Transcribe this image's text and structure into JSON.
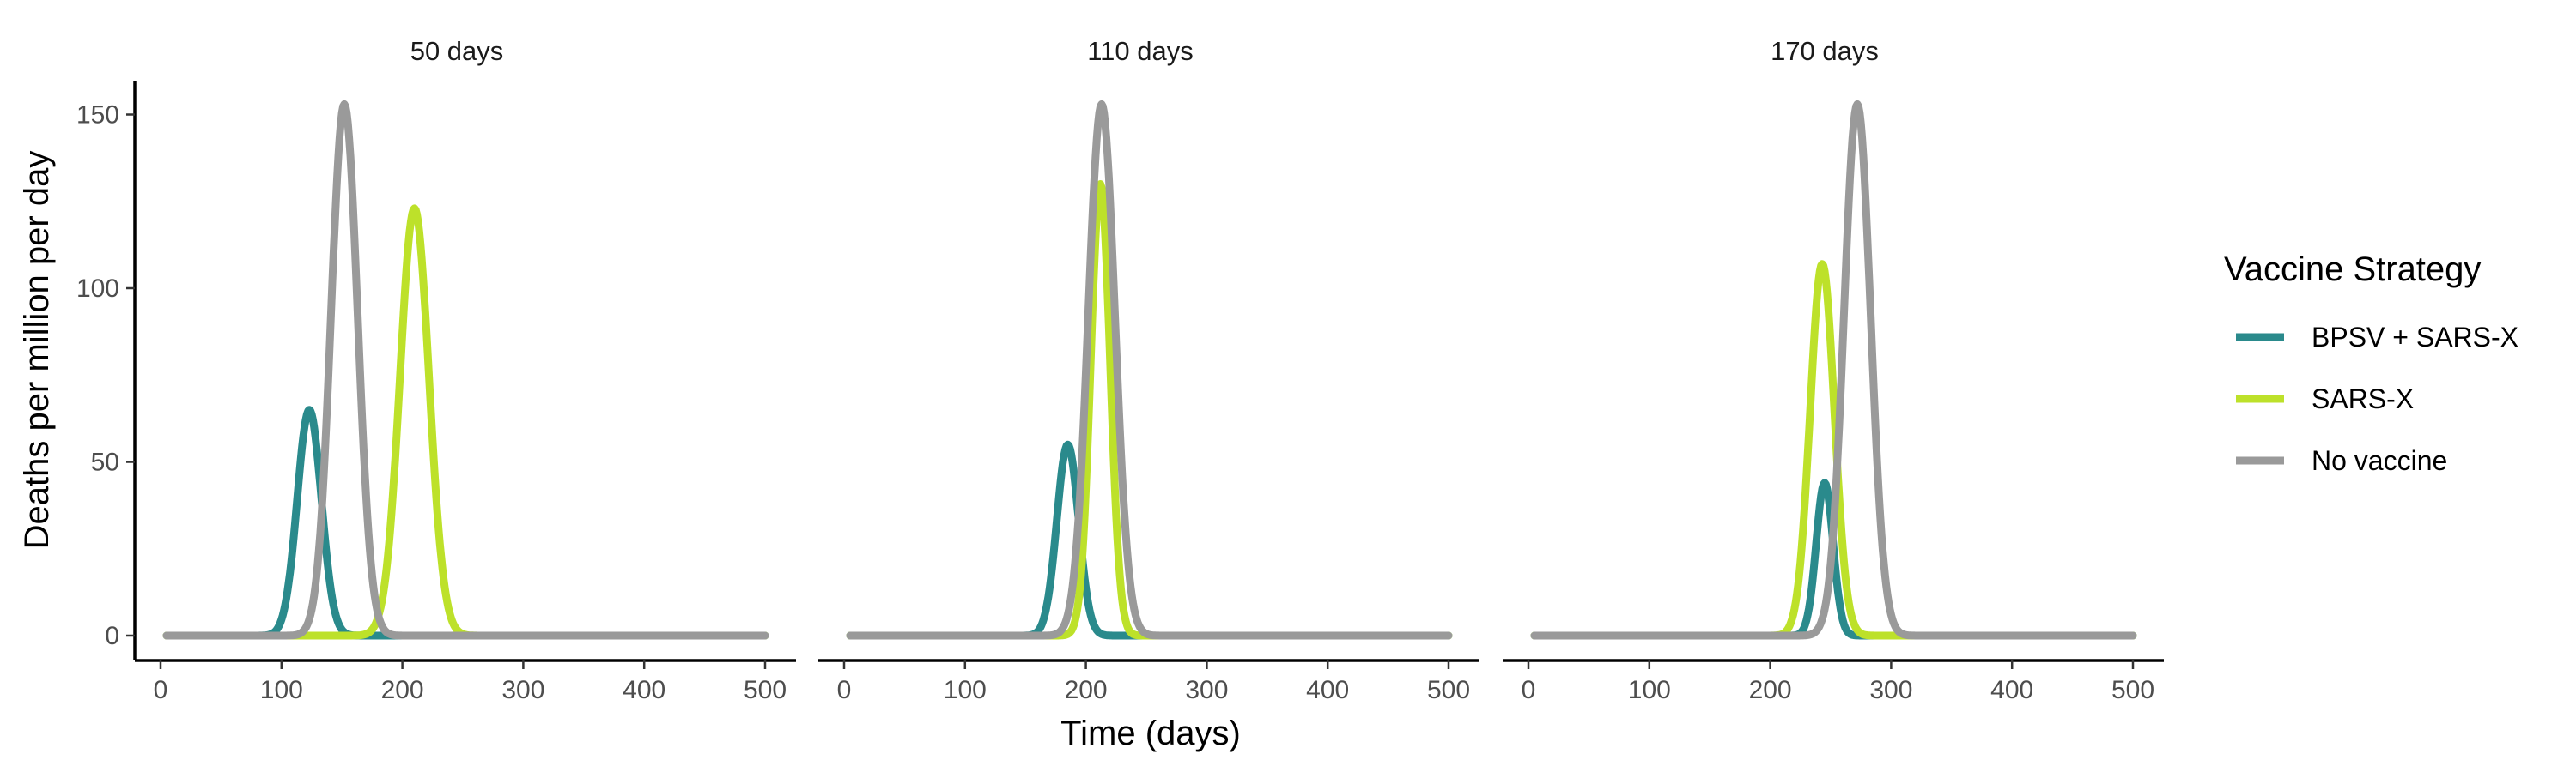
{
  "chart_data": {
    "type": "line",
    "xlabel": "Time (days)",
    "ylabel": "Deaths per million per day",
    "xlim": [
      0,
      500
    ],
    "ylim": [
      0,
      160
    ],
    "x_ticks": [
      0,
      100,
      200,
      300,
      400,
      500
    ],
    "y_ticks": [
      0,
      50,
      100,
      150
    ],
    "grid": false,
    "legend": {
      "title": "Vaccine Strategy",
      "placement": "right",
      "entries": [
        {
          "name": "BPSV + SARS-X",
          "color": "#2a8a8c"
        },
        {
          "name": "SARS-X",
          "color": "#bde12a"
        },
        {
          "name": "No vaccine",
          "color": "#9a9a9a"
        }
      ]
    },
    "x_range": [
      5,
      500
    ],
    "panels": [
      {
        "title": "50 days",
        "series": [
          {
            "name": "BPSV + SARS-X",
            "color": "#2a8a8c",
            "peak_x": 123,
            "peak_y": 65,
            "width": 10
          },
          {
            "name": "SARS-X",
            "color": "#bde12a",
            "peak_x": 210,
            "peak_y": 123,
            "width": 12
          },
          {
            "name": "No vaccine",
            "color": "#9a9a9a",
            "peak_x": 152,
            "peak_y": 153,
            "width": 11
          }
        ]
      },
      {
        "title": "110 days",
        "series": [
          {
            "name": "BPSV + SARS-X",
            "color": "#2a8a8c",
            "peak_x": 185,
            "peak_y": 55,
            "width": 9
          },
          {
            "name": "SARS-X",
            "color": "#bde12a",
            "peak_x": 212,
            "peak_y": 130,
            "width": 8
          },
          {
            "name": "No vaccine",
            "color": "#9a9a9a",
            "peak_x": 213,
            "peak_y": 153,
            "width": 11
          }
        ]
      },
      {
        "title": "170 days",
        "series": [
          {
            "name": "BPSV + SARS-X",
            "color": "#2a8a8c",
            "peak_x": 245,
            "peak_y": 44,
            "width": 7
          },
          {
            "name": "SARS-X",
            "color": "#bde12a",
            "peak_x": 243,
            "peak_y": 107,
            "width": 10
          },
          {
            "name": "No vaccine",
            "color": "#9a9a9a",
            "peak_x": 272,
            "peak_y": 153,
            "width": 11
          }
        ]
      }
    ]
  }
}
